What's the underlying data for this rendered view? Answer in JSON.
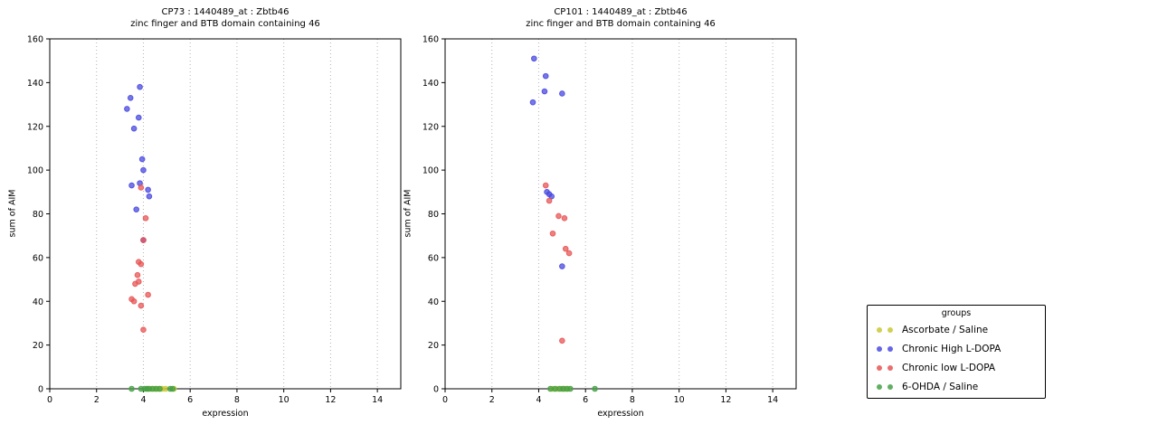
{
  "style": {
    "background": "#ffffff",
    "grid_color": "#b3b3b3",
    "axis_color": "#000000",
    "text_color": "#000000"
  },
  "legend": {
    "title": "groups",
    "entries": [
      {
        "label": "Ascorbate / Saline",
        "color": "#c8c832"
      },
      {
        "label": "Chronic High L-DOPA",
        "color": "#4a4ae0"
      },
      {
        "label": "Chronic low L-DOPA",
        "color": "#e85555"
      },
      {
        "label": "6-OHDA / Saline",
        "color": "#46a046"
      }
    ]
  },
  "chart_data": [
    {
      "type": "scatter",
      "title_line1": "CP73 : 1440489_at : Zbtb46",
      "title_line2": "zinc finger and BTB domain containing 46",
      "xlabel": "expression",
      "ylabel": "sum of AIM",
      "xlim": [
        0,
        15
      ],
      "ylim": [
        0,
        160
      ],
      "xticks": [
        0,
        2,
        4,
        6,
        8,
        10,
        12,
        14
      ],
      "yticks": [
        0,
        20,
        40,
        60,
        80,
        100,
        120,
        140,
        160
      ],
      "grid": "vertical-dotted",
      "legend_position": "outside-right",
      "series": [
        {
          "name": "Ascorbate / Saline",
          "key": "ascorbate-saline",
          "color": "#c8c832",
          "points": [
            [
              4.2,
              0
            ],
            [
              4.35,
              0
            ],
            [
              4.5,
              0
            ],
            [
              4.65,
              0
            ],
            [
              4.8,
              0
            ],
            [
              4.95,
              0
            ],
            [
              5.3,
              0
            ]
          ]
        },
        {
          "name": "Chronic High L-DOPA",
          "key": "chronic-high-ldopa",
          "color": "#4a4ae0",
          "points": [
            [
              3.3,
              128
            ],
            [
              3.45,
              133
            ],
            [
              3.85,
              138
            ],
            [
              3.8,
              124
            ],
            [
              3.6,
              119
            ],
            [
              3.95,
              105
            ],
            [
              4.0,
              100
            ],
            [
              3.5,
              93
            ],
            [
              3.85,
              94
            ],
            [
              3.7,
              82
            ],
            [
              4.2,
              91
            ],
            [
              4.25,
              88
            ],
            [
              4.0,
              68
            ]
          ]
        },
        {
          "name": "Chronic low L-DOPA",
          "key": "chronic-low-ldopa",
          "color": "#e85555",
          "points": [
            [
              3.9,
              92
            ],
            [
              4.1,
              78
            ],
            [
              4.0,
              68
            ],
            [
              3.8,
              58
            ],
            [
              3.9,
              57
            ],
            [
              3.75,
              52
            ],
            [
              3.8,
              49
            ],
            [
              3.65,
              48
            ],
            [
              4.2,
              43
            ],
            [
              3.5,
              41
            ],
            [
              3.6,
              40
            ],
            [
              3.9,
              38
            ],
            [
              4.0,
              27
            ]
          ]
        },
        {
          "name": "6-OHDA / Saline",
          "key": "ohda-saline",
          "color": "#46a046",
          "points": [
            [
              3.5,
              0
            ],
            [
              3.9,
              0
            ],
            [
              4.05,
              0
            ],
            [
              4.15,
              0
            ],
            [
              4.25,
              0
            ],
            [
              4.4,
              0
            ],
            [
              4.55,
              0
            ],
            [
              4.7,
              0
            ],
            [
              5.15,
              0
            ],
            [
              5.25,
              0
            ]
          ]
        }
      ]
    },
    {
      "type": "scatter",
      "title_line1": "CP101 : 1440489_at : Zbtb46",
      "title_line2": "zinc finger and BTB domain containing 46",
      "xlabel": "expression",
      "ylabel": "sum of AIM",
      "xlim": [
        0,
        15
      ],
      "ylim": [
        0,
        160
      ],
      "xticks": [
        0,
        2,
        4,
        6,
        8,
        10,
        12,
        14
      ],
      "yticks": [
        0,
        20,
        40,
        60,
        80,
        100,
        120,
        140,
        160
      ],
      "grid": "vertical-dotted",
      "legend_position": "outside-right",
      "series": [
        {
          "name": "Ascorbate / Saline",
          "key": "ascorbate-saline",
          "color": "#c8c832",
          "points": [
            [
              4.6,
              0
            ],
            [
              4.8,
              0
            ],
            [
              5.0,
              0
            ],
            [
              5.1,
              0
            ],
            [
              5.25,
              0
            ]
          ]
        },
        {
          "name": "Chronic High L-DOPA",
          "key": "chronic-high-ldopa",
          "color": "#4a4ae0",
          "points": [
            [
              3.8,
              151
            ],
            [
              4.3,
              143
            ],
            [
              4.25,
              136
            ],
            [
              3.75,
              131
            ],
            [
              5.0,
              135
            ],
            [
              4.35,
              90
            ],
            [
              4.45,
              89
            ],
            [
              4.55,
              88
            ],
            [
              5.0,
              56
            ]
          ]
        },
        {
          "name": "Chronic low L-DOPA",
          "key": "chronic-low-ldopa",
          "color": "#e85555",
          "points": [
            [
              4.3,
              93
            ],
            [
              4.45,
              86
            ],
            [
              4.85,
              79
            ],
            [
              5.1,
              78
            ],
            [
              4.6,
              71
            ],
            [
              5.15,
              64
            ],
            [
              5.3,
              62
            ],
            [
              5.0,
              22
            ]
          ]
        },
        {
          "name": "6-OHDA / Saline",
          "key": "ohda-saline",
          "color": "#46a046",
          "points": [
            [
              4.5,
              0
            ],
            [
              4.7,
              0
            ],
            [
              4.9,
              0
            ],
            [
              5.05,
              0
            ],
            [
              5.2,
              0
            ],
            [
              5.35,
              0
            ],
            [
              6.4,
              0
            ]
          ]
        }
      ]
    }
  ]
}
